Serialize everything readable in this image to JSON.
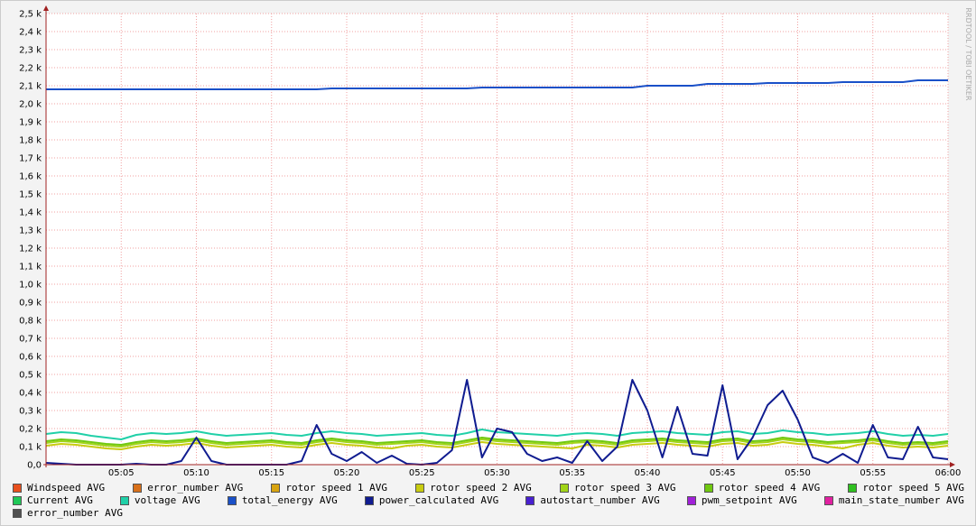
{
  "chart_data": {
    "type": "line",
    "watermark": "RRDTOOL / TOBI OETIKER",
    "x": [
      "05:00",
      "05:01",
      "05:02",
      "05:03",
      "05:04",
      "05:05",
      "05:06",
      "05:07",
      "05:08",
      "05:09",
      "05:10",
      "05:11",
      "05:12",
      "05:13",
      "05:14",
      "05:15",
      "05:16",
      "05:17",
      "05:18",
      "05:19",
      "05:20",
      "05:21",
      "05:22",
      "05:23",
      "05:24",
      "05:25",
      "05:26",
      "05:27",
      "05:28",
      "05:29",
      "05:30",
      "05:31",
      "05:32",
      "05:33",
      "05:34",
      "05:35",
      "05:36",
      "05:37",
      "05:38",
      "05:39",
      "05:40",
      "05:41",
      "05:42",
      "05:43",
      "05:44",
      "05:45",
      "05:46",
      "05:47",
      "05:48",
      "05:49",
      "05:50",
      "05:51",
      "05:52",
      "05:53",
      "05:54",
      "05:55",
      "05:56",
      "05:57",
      "05:58",
      "05:59",
      "06:00"
    ],
    "xticks": [
      "05:05",
      "05:10",
      "05:15",
      "05:20",
      "05:25",
      "05:30",
      "05:35",
      "05:40",
      "05:45",
      "05:50",
      "05:55",
      "06:00"
    ],
    "ylim": [
      0,
      2500
    ],
    "yticks": [
      {
        "value": 0,
        "label": "0,0"
      },
      {
        "value": 100,
        "label": "0,1 k"
      },
      {
        "value": 200,
        "label": "0,2 k"
      },
      {
        "value": 300,
        "label": "0,3 k"
      },
      {
        "value": 400,
        "label": "0,4 k"
      },
      {
        "value": 500,
        "label": "0,5 k"
      },
      {
        "value": 600,
        "label": "0,6 k"
      },
      {
        "value": 700,
        "label": "0,7 k"
      },
      {
        "value": 800,
        "label": "0,8 k"
      },
      {
        "value": 900,
        "label": "0,9 k"
      },
      {
        "value": 1000,
        "label": "1,0 k"
      },
      {
        "value": 1100,
        "label": "1,1 k"
      },
      {
        "value": 1200,
        "label": "1,2 k"
      },
      {
        "value": 1300,
        "label": "1,3 k"
      },
      {
        "value": 1400,
        "label": "1,4 k"
      },
      {
        "value": 1500,
        "label": "1,5 k"
      },
      {
        "value": 1600,
        "label": "1,6 k"
      },
      {
        "value": 1700,
        "label": "1,7 k"
      },
      {
        "value": 1800,
        "label": "1,8 k"
      },
      {
        "value": 1900,
        "label": "1,9 k"
      },
      {
        "value": 2000,
        "label": "2,0 k"
      },
      {
        "value": 2100,
        "label": "2,1 k"
      },
      {
        "value": 2200,
        "label": "2,2 k"
      },
      {
        "value": 2300,
        "label": "2,3 k"
      },
      {
        "value": 2400,
        "label": "2,4 k"
      },
      {
        "value": 2500,
        "label": "2,5 k"
      }
    ],
    "grid": true,
    "series": [
      {
        "name": "Windspeed AVG",
        "color": "#e8501e"
      },
      {
        "name": "error_number AVG",
        "color": "#d8701a"
      },
      {
        "name": "rotor speed 1 AVG",
        "color": "#d8a410"
      },
      {
        "name": "rotor speed 2 AVG",
        "color": "#c8cc10",
        "values": [
          105,
          115,
          110,
          100,
          90,
          85,
          100,
          110,
          105,
          110,
          120,
          105,
          95,
          100,
          105,
          110,
          100,
          95,
          110,
          120,
          110,
          105,
          95,
          90,
          105,
          110,
          100,
          95,
          110,
          125,
          115,
          110,
          105,
          100,
          95,
          90,
          110,
          105,
          95,
          110,
          115,
          120,
          110,
          105,
          100,
          115,
          120,
          105,
          110,
          125,
          115,
          110,
          100,
          90,
          110,
          120,
          105,
          95,
          100,
          95,
          105
        ]
      },
      {
        "name": "rotor speed 3 AVG",
        "color": "#a0d418",
        "values": [
          120,
          130,
          125,
          115,
          105,
          100,
          115,
          125,
          120,
          125,
          135,
          120,
          110,
          115,
          120,
          125,
          115,
          110,
          125,
          135,
          125,
          120,
          110,
          115,
          120,
          125,
          115,
          110,
          125,
          140,
          130,
          125,
          120,
          115,
          110,
          120,
          125,
          120,
          110,
          125,
          130,
          135,
          125,
          120,
          115,
          130,
          135,
          120,
          125,
          140,
          130,
          125,
          115,
          120,
          125,
          135,
          120,
          110,
          115,
          110,
          120
        ]
      },
      {
        "name": "rotor speed 4 AVG",
        "color": "#70c810",
        "values": [
          130,
          140,
          135,
          125,
          115,
          110,
          125,
          135,
          130,
          135,
          145,
          130,
          120,
          125,
          130,
          135,
          125,
          120,
          135,
          145,
          135,
          130,
          120,
          125,
          130,
          135,
          125,
          120,
          135,
          150,
          140,
          135,
          130,
          125,
          120,
          130,
          135,
          130,
          120,
          135,
          140,
          145,
          135,
          130,
          125,
          140,
          145,
          130,
          135,
          150,
          140,
          135,
          125,
          130,
          135,
          145,
          130,
          120,
          125,
          120,
          130
        ]
      },
      {
        "name": "rotor speed 5 AVG",
        "color": "#30c020"
      },
      {
        "name": "Current AVG",
        "color": "#20c858"
      },
      {
        "name": "voltage AVG",
        "color": "#20d0a8",
        "values": [
          170,
          180,
          175,
          160,
          150,
          140,
          165,
          175,
          170,
          175,
          185,
          170,
          160,
          165,
          170,
          175,
          165,
          160,
          175,
          185,
          175,
          170,
          160,
          165,
          170,
          175,
          165,
          160,
          175,
          195,
          180,
          175,
          170,
          165,
          160,
          170,
          175,
          170,
          160,
          175,
          180,
          185,
          175,
          170,
          165,
          180,
          185,
          170,
          175,
          190,
          180,
          175,
          165,
          170,
          175,
          185,
          170,
          160,
          165,
          160,
          170
        ]
      },
      {
        "name": "total_energy AVG",
        "color": "#1a50c8",
        "values": [
          2080,
          2080,
          2080,
          2080,
          2080,
          2080,
          2080,
          2080,
          2080,
          2080,
          2080,
          2080,
          2080,
          2080,
          2080,
          2080,
          2080,
          2080,
          2080,
          2085,
          2085,
          2085,
          2085,
          2085,
          2085,
          2085,
          2085,
          2085,
          2085,
          2090,
          2090,
          2090,
          2090,
          2090,
          2090,
          2090,
          2090,
          2090,
          2090,
          2090,
          2100,
          2100,
          2100,
          2100,
          2110,
          2110,
          2110,
          2110,
          2115,
          2115,
          2115,
          2115,
          2115,
          2120,
          2120,
          2120,
          2120,
          2120,
          2130,
          2130,
          2130
        ]
      },
      {
        "name": "power_calculated AVG",
        "color": "#101c90",
        "values": [
          10,
          5,
          0,
          0,
          0,
          0,
          5,
          0,
          0,
          20,
          150,
          20,
          0,
          0,
          0,
          0,
          0,
          20,
          220,
          60,
          20,
          70,
          10,
          50,
          5,
          0,
          10,
          80,
          470,
          40,
          200,
          180,
          60,
          20,
          40,
          10,
          130,
          20,
          100,
          470,
          300,
          40,
          320,
          60,
          50,
          440,
          30,
          150,
          330,
          410,
          250,
          40,
          10,
          60,
          10,
          220,
          40,
          30,
          210,
          40,
          30
        ]
      },
      {
        "name": "autostart_number AVG",
        "color": "#4820d0"
      },
      {
        "name": "pwm_setpoint AVG",
        "color": "#a020d8"
      },
      {
        "name": "main_state_number AVG",
        "color": "#e020a0"
      },
      {
        "name": "error_number AVG",
        "color": "#505050"
      }
    ]
  }
}
